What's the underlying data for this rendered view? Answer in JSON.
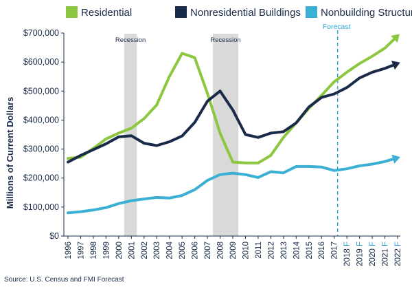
{
  "chart_data": {
    "type": "line",
    "title": "",
    "xlabel": "",
    "ylabel": "Millions of Current Dollars",
    "ylim": [
      0,
      700000
    ],
    "yticks": [
      0,
      100000,
      200000,
      300000,
      400000,
      500000,
      600000,
      700000
    ],
    "ytick_labels": [
      "$0",
      "$100,000",
      "$200,000",
      "$300,000",
      "$400,000",
      "$500,000",
      "$600,000",
      "$700,000"
    ],
    "x": [
      "1996",
      "1997",
      "1998",
      "1999",
      "2000",
      "2001",
      "2002",
      "2003",
      "2004",
      "2005",
      "2006",
      "2007",
      "2008",
      "2009",
      "2010",
      "2011",
      "2012",
      "2013",
      "2014",
      "2015",
      "2016",
      "2017",
      "2018 F",
      "2019 F",
      "2020 F",
      "2021 F",
      "2022 F"
    ],
    "grid": false,
    "legend_position": "top",
    "series": [
      {
        "name": "Residential",
        "color": "#8dc63f",
        "values": [
          268000,
          272000,
          302000,
          335000,
          355000,
          372000,
          405000,
          452000,
          550000,
          630000,
          615000,
          492000,
          355000,
          255000,
          252000,
          252000,
          278000,
          340000,
          390000,
          440000,
          485000,
          532000,
          565000,
          595000,
          620000,
          648000,
          690000
        ]
      },
      {
        "name": "Nonresidential Buildings",
        "color": "#1a2b4a",
        "values": [
          255000,
          278000,
          298000,
          318000,
          342000,
          346000,
          320000,
          312000,
          325000,
          345000,
          392000,
          465000,
          500000,
          435000,
          350000,
          340000,
          355000,
          360000,
          390000,
          445000,
          478000,
          490000,
          512000,
          545000,
          565000,
          578000,
          595000
        ]
      },
      {
        "name": "Nonbuilding Structures",
        "color": "#3cb0d4",
        "values": [
          80000,
          84000,
          90000,
          98000,
          112000,
          122000,
          128000,
          133000,
          131000,
          140000,
          160000,
          192000,
          212000,
          217000,
          212000,
          202000,
          222000,
          218000,
          240000,
          240000,
          238000,
          226000,
          232000,
          242000,
          248000,
          257000,
          270000
        ]
      }
    ],
    "annotations": [
      {
        "text": "Recession",
        "x_start": "2000",
        "x_end": "2001",
        "type": "band",
        "color": "#d9d9d9"
      },
      {
        "text": "Recession",
        "x_start": "2007",
        "x_end": "2009",
        "type": "band",
        "color": "#d9d9d9"
      },
      {
        "text": "Forecast",
        "x": "2017",
        "type": "vline",
        "color": "#2aa6d8"
      }
    ],
    "source": "Source: U.S. Census and FMI Forecast"
  }
}
